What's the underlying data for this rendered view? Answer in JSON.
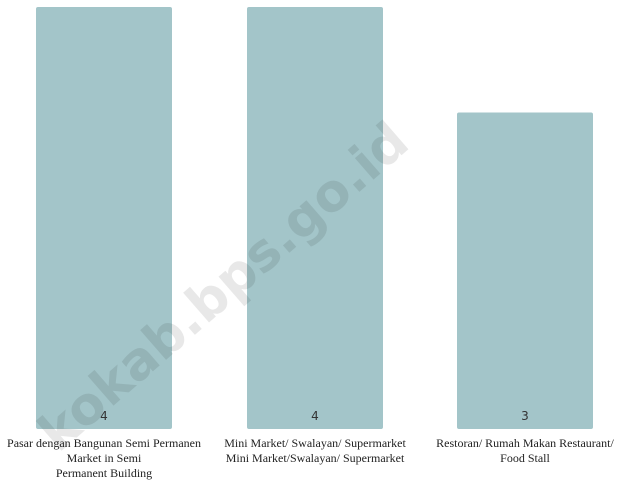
{
  "watermark": "kokab.bps.go.id",
  "chart_data": {
    "type": "bar",
    "title": "",
    "xlabel": "",
    "ylabel": "",
    "ylim": [
      0,
      4
    ],
    "grid": false,
    "legend": "none",
    "bar_color": "#a3c5c9",
    "categories": [
      [
        "Pasar dengan Bangunan Semi Permanen",
        "Market in Semi",
        "Permanent Building"
      ],
      [
        "Mini Market/ Swalayan/ Supermarket",
        "Mini Market/Swalayan/ Supermarket"
      ],
      [
        "Restoran/ Rumah Makan Restaurant/",
        "Food Stall"
      ]
    ],
    "values": [
      4,
      4,
      3
    ],
    "data_labels": [
      "4",
      "4",
      "3"
    ]
  }
}
